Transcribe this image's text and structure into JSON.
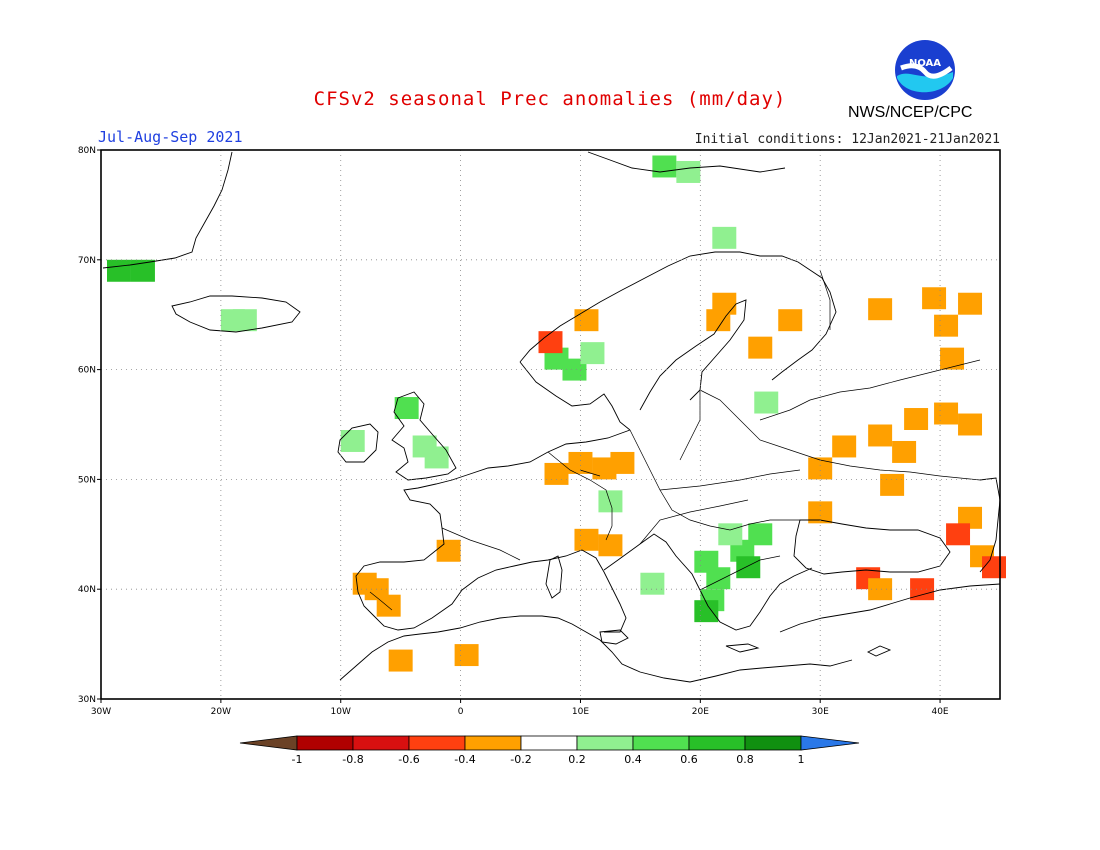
{
  "header": {
    "title": "CFSv2 seasonal Prec anomalies (mm/day)",
    "period": "Jul-Aug-Sep 2021",
    "initial_conditions": "Initial conditions: 12Jan2021-21Jan2021",
    "agency": "NWS/NCEP/CPC",
    "logo_text": "NOAA"
  },
  "map": {
    "lon_range": [
      -30,
      45
    ],
    "lat_range": [
      30,
      80
    ],
    "lat_ticks": [
      "30N",
      "40N",
      "50N",
      "60N",
      "70N",
      "80N"
    ],
    "lon_ticks": [
      "30W",
      "20W",
      "10W",
      "0",
      "10E",
      "20E",
      "30E",
      "40E"
    ],
    "anomaly_cells": [
      {
        "lon": -28.5,
        "lat": 69.0,
        "level": "0.6-0.8"
      },
      {
        "lon": -26.5,
        "lat": 69.0,
        "level": "0.6-0.8"
      },
      {
        "lon": -19.0,
        "lat": 64.5,
        "level": "0.2-0.4"
      },
      {
        "lon": -18.0,
        "lat": 64.5,
        "level": "0.2-0.4"
      },
      {
        "lon": -9.0,
        "lat": 53.5,
        "level": "0.2-0.4"
      },
      {
        "lon": -4.5,
        "lat": 56.5,
        "level": "0.4-0.6"
      },
      {
        "lon": -3.0,
        "lat": 53.0,
        "level": "0.2-0.4"
      },
      {
        "lon": -2.0,
        "lat": 52.0,
        "level": "0.2-0.4"
      },
      {
        "lon": -1.0,
        "lat": 43.5,
        "level": "-0.4--0.2"
      },
      {
        "lon": -8.0,
        "lat": 40.5,
        "level": "-0.4--0.2"
      },
      {
        "lon": -7.0,
        "lat": 40.0,
        "level": "-0.4--0.2"
      },
      {
        "lon": -6.0,
        "lat": 38.5,
        "level": "-0.4--0.2"
      },
      {
        "lon": -5.0,
        "lat": 33.5,
        "level": "-0.4--0.2"
      },
      {
        "lon": 0.5,
        "lat": 34.0,
        "level": "-0.4--0.2"
      },
      {
        "lon": 8.0,
        "lat": 61.0,
        "level": "0.4-0.6"
      },
      {
        "lon": 9.5,
        "lat": 60.0,
        "level": "0.4-0.6"
      },
      {
        "lon": 11.0,
        "lat": 61.5,
        "level": "0.2-0.4"
      },
      {
        "lon": 7.5,
        "lat": 62.5,
        "level": "-0.6--0.4"
      },
      {
        "lon": 10.5,
        "lat": 64.5,
        "level": "-0.4--0.2"
      },
      {
        "lon": 8.0,
        "lat": 50.5,
        "level": "-0.4--0.2"
      },
      {
        "lon": 10.0,
        "lat": 51.5,
        "level": "-0.4--0.2"
      },
      {
        "lon": 12.0,
        "lat": 51.0,
        "level": "-0.4--0.2"
      },
      {
        "lon": 13.5,
        "lat": 51.5,
        "level": "-0.4--0.2"
      },
      {
        "lon": 12.5,
        "lat": 48.0,
        "level": "0.2-0.4"
      },
      {
        "lon": 10.5,
        "lat": 44.5,
        "level": "-0.4--0.2"
      },
      {
        "lon": 12.5,
        "lat": 44.0,
        "level": "-0.4--0.2"
      },
      {
        "lon": 16.0,
        "lat": 40.5,
        "level": "0.2-0.4"
      },
      {
        "lon": 20.5,
        "lat": 42.5,
        "level": "0.4-0.6"
      },
      {
        "lon": 21.5,
        "lat": 41.0,
        "level": "0.4-0.6"
      },
      {
        "lon": 23.5,
        "lat": 43.5,
        "level": "0.4-0.6"
      },
      {
        "lon": 24.0,
        "lat": 42.0,
        "level": "0.6-0.8"
      },
      {
        "lon": 25.0,
        "lat": 45.0,
        "level": "0.4-0.6"
      },
      {
        "lon": 22.5,
        "lat": 45.0,
        "level": "0.2-0.4"
      },
      {
        "lon": 21.0,
        "lat": 39.0,
        "level": "0.4-0.6"
      },
      {
        "lon": 20.5,
        "lat": 38.0,
        "level": "0.6-0.8"
      },
      {
        "lon": 22.0,
        "lat": 66.0,
        "level": "-0.4--0.2"
      },
      {
        "lon": 21.5,
        "lat": 64.5,
        "level": "-0.4--0.2"
      },
      {
        "lon": 25.0,
        "lat": 62.0,
        "level": "-0.4--0.2"
      },
      {
        "lon": 27.5,
        "lat": 64.5,
        "level": "-0.4--0.2"
      },
      {
        "lon": 25.5,
        "lat": 57.0,
        "level": "0.2-0.4"
      },
      {
        "lon": 30.0,
        "lat": 51.0,
        "level": "-0.4--0.2"
      },
      {
        "lon": 32.0,
        "lat": 53.0,
        "level": "-0.4--0.2"
      },
      {
        "lon": 35.0,
        "lat": 54.0,
        "level": "-0.4--0.2"
      },
      {
        "lon": 38.0,
        "lat": 55.5,
        "level": "-0.4--0.2"
      },
      {
        "lon": 40.5,
        "lat": 56.0,
        "level": "-0.4--0.2"
      },
      {
        "lon": 42.5,
        "lat": 55.0,
        "level": "-0.4--0.2"
      },
      {
        "lon": 37.0,
        "lat": 52.5,
        "level": "-0.4--0.2"
      },
      {
        "lon": 36.0,
        "lat": 49.5,
        "level": "-0.4--0.2"
      },
      {
        "lon": 39.5,
        "lat": 66.5,
        "level": "-0.4--0.2"
      },
      {
        "lon": 42.5,
        "lat": 66.0,
        "level": "-0.4--0.2"
      },
      {
        "lon": 40.5,
        "lat": 64.0,
        "level": "-0.4--0.2"
      },
      {
        "lon": 41.0,
        "lat": 61.0,
        "level": "-0.4--0.2"
      },
      {
        "lon": 35.0,
        "lat": 65.5,
        "level": "-0.4--0.2"
      },
      {
        "lon": 42.5,
        "lat": 46.5,
        "level": "-0.4--0.2"
      },
      {
        "lon": 41.5,
        "lat": 45.0,
        "level": "-0.6--0.4"
      },
      {
        "lon": 43.5,
        "lat": 43.0,
        "level": "-0.4--0.2"
      },
      {
        "lon": 44.5,
        "lat": 42.0,
        "level": "-0.6--0.4"
      },
      {
        "lon": 34.0,
        "lat": 41.0,
        "level": "-0.6--0.4"
      },
      {
        "lon": 38.5,
        "lat": 40.0,
        "level": "-0.6--0.4"
      },
      {
        "lon": 35.0,
        "lat": 40.0,
        "level": "-0.4--0.2"
      },
      {
        "lon": 30.0,
        "lat": 47.0,
        "level": "-0.4--0.2"
      },
      {
        "lon": 22.0,
        "lat": 72.0,
        "level": "0.2-0.4"
      },
      {
        "lon": 17.0,
        "lat": 78.5,
        "level": "0.4-0.6"
      },
      {
        "lon": 19.0,
        "lat": 78.0,
        "level": "0.2-0.4"
      }
    ]
  },
  "legend": {
    "labels": [
      "-1",
      "-0.8",
      "-0.6",
      "-0.4",
      "-0.2",
      "0.2",
      "0.4",
      "0.6",
      "0.8",
      "1"
    ],
    "colors": [
      "#6b4226",
      "#b00000",
      "#d81010",
      "#ff4010",
      "#ffa000",
      "#ffffff",
      "#90f090",
      "#50e050",
      "#28c028",
      "#109010",
      "#2a78e8"
    ],
    "level_colors": {
      "-0.6--0.4": "#ff4010",
      "-0.4--0.2": "#ffa000",
      "0.2-0.4": "#90f090",
      "0.4-0.6": "#50e050",
      "0.6-0.8": "#28c028"
    }
  }
}
